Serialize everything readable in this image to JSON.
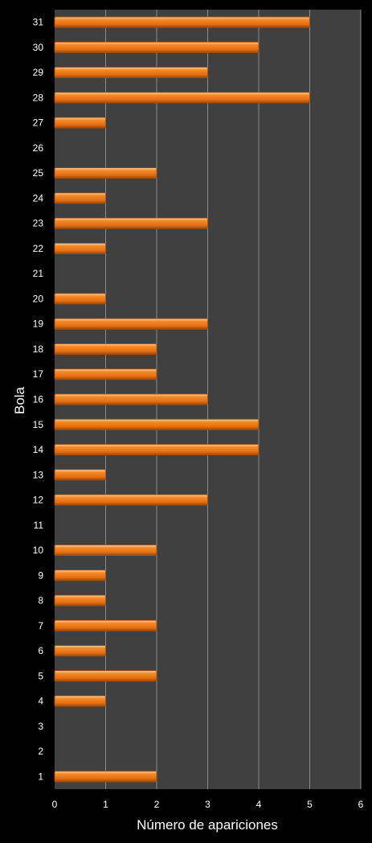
{
  "chart_data": {
    "type": "bar",
    "orientation": "horizontal",
    "categories": [
      "1",
      "2",
      "3",
      "4",
      "5",
      "6",
      "7",
      "8",
      "9",
      "10",
      "11",
      "12",
      "13",
      "14",
      "15",
      "16",
      "17",
      "18",
      "19",
      "20",
      "21",
      "22",
      "23",
      "24",
      "25",
      "26",
      "27",
      "28",
      "29",
      "30",
      "31"
    ],
    "values": [
      2,
      0,
      0,
      1,
      2,
      1,
      2,
      1,
      1,
      2,
      0,
      3,
      1,
      4,
      4,
      3,
      2,
      2,
      3,
      1,
      0,
      1,
      3,
      1,
      2,
      0,
      1,
      5,
      3,
      4,
      5
    ],
    "xlabel": "Número de apariciones",
    "ylabel": "Bola",
    "xlim": [
      0,
      6
    ],
    "xticks": [
      "0",
      "1",
      "2",
      "3",
      "4",
      "5",
      "6"
    ],
    "grid": "vertical",
    "legend": "none",
    "colors": {
      "background": "#000000",
      "plot_area": "#404040",
      "gridline": "#8c8c8c",
      "bar": "#f07d19",
      "bar_light": "#ffc48a",
      "bar_dark": "#a84d08",
      "text": "#ffffff"
    }
  }
}
